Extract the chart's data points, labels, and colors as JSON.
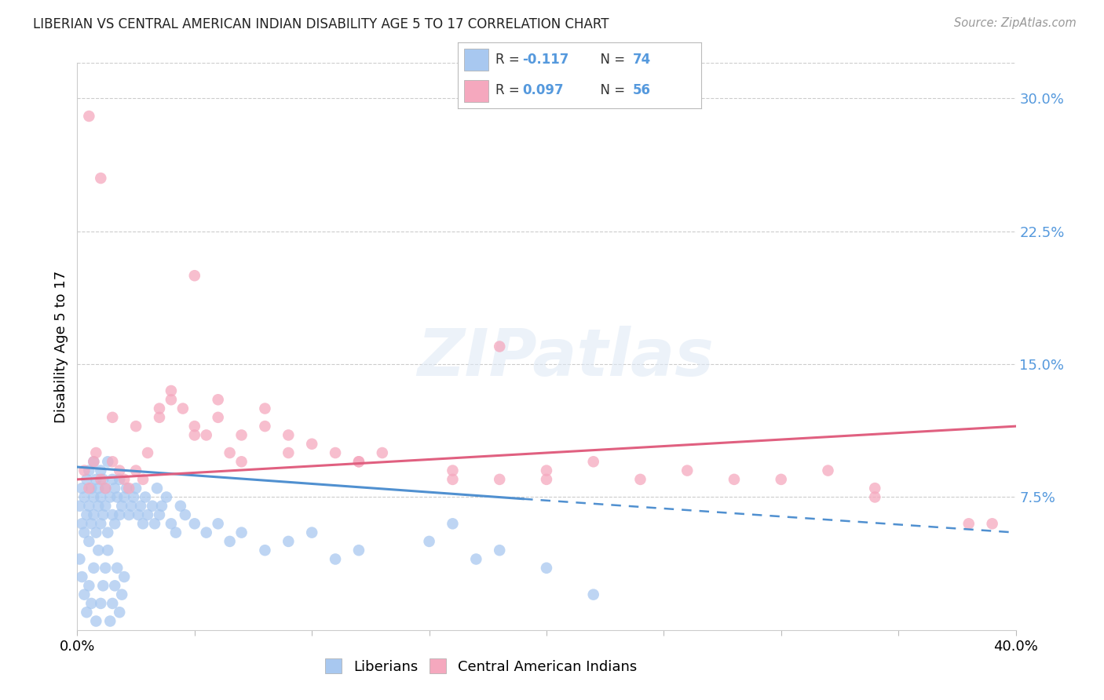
{
  "title": "LIBERIAN VS CENTRAL AMERICAN INDIAN DISABILITY AGE 5 TO 17 CORRELATION CHART",
  "source": "Source: ZipAtlas.com",
  "ylabel": "Disability Age 5 to 17",
  "xlim": [
    0.0,
    0.4
  ],
  "ylim": [
    0.0,
    0.32
  ],
  "xticks": [
    0.0,
    0.05,
    0.1,
    0.15,
    0.2,
    0.25,
    0.3,
    0.35,
    0.4
  ],
  "xticklabels": [
    "0.0%",
    "",
    "",
    "",
    "",
    "",
    "",
    "",
    "40.0%"
  ],
  "yticks_right": [
    0.0,
    0.075,
    0.15,
    0.225,
    0.3
  ],
  "yticklabels_right": [
    "",
    "7.5%",
    "15.0%",
    "22.5%",
    "30.0%"
  ],
  "color_liberian": "#a8c8f0",
  "color_cai": "#f5a8be",
  "color_line_liberian": "#5090d0",
  "color_line_cai": "#e06080",
  "color_right_axis": "#5599dd",
  "background_color": "#ffffff",
  "watermark_text": "ZIPatlas",
  "lib_line_start_x": 0.0,
  "lib_line_start_y": 0.092,
  "lib_line_solid_end_x": 0.19,
  "lib_line_solid_end_y": 0.074,
  "lib_line_dash_end_x": 0.4,
  "lib_line_dash_end_y": 0.055,
  "cai_line_start_x": 0.0,
  "cai_line_start_y": 0.085,
  "cai_line_end_x": 0.4,
  "cai_line_end_y": 0.115,
  "lib_x": [
    0.001,
    0.002,
    0.002,
    0.003,
    0.003,
    0.004,
    0.004,
    0.005,
    0.005,
    0.005,
    0.006,
    0.006,
    0.007,
    0.007,
    0.007,
    0.008,
    0.008,
    0.009,
    0.009,
    0.01,
    0.01,
    0.01,
    0.011,
    0.011,
    0.012,
    0.012,
    0.013,
    0.013,
    0.014,
    0.015,
    0.015,
    0.016,
    0.016,
    0.017,
    0.018,
    0.018,
    0.019,
    0.02,
    0.021,
    0.022,
    0.023,
    0.024,
    0.025,
    0.026,
    0.027,
    0.028,
    0.029,
    0.03,
    0.032,
    0.033,
    0.034,
    0.035,
    0.036,
    0.038,
    0.04,
    0.042,
    0.044,
    0.046,
    0.05,
    0.055,
    0.06,
    0.065,
    0.07,
    0.08,
    0.09,
    0.1,
    0.11,
    0.12,
    0.15,
    0.16,
    0.17,
    0.18,
    0.2,
    0.22
  ],
  "lib_y": [
    0.07,
    0.06,
    0.08,
    0.055,
    0.075,
    0.065,
    0.085,
    0.05,
    0.07,
    0.09,
    0.06,
    0.08,
    0.065,
    0.075,
    0.095,
    0.055,
    0.085,
    0.07,
    0.08,
    0.06,
    0.075,
    0.09,
    0.065,
    0.085,
    0.07,
    0.08,
    0.055,
    0.095,
    0.075,
    0.065,
    0.085,
    0.06,
    0.08,
    0.075,
    0.065,
    0.085,
    0.07,
    0.075,
    0.08,
    0.065,
    0.07,
    0.075,
    0.08,
    0.065,
    0.07,
    0.06,
    0.075,
    0.065,
    0.07,
    0.06,
    0.08,
    0.065,
    0.07,
    0.075,
    0.06,
    0.055,
    0.07,
    0.065,
    0.06,
    0.055,
    0.06,
    0.05,
    0.055,
    0.045,
    0.05,
    0.055,
    0.04,
    0.045,
    0.05,
    0.06,
    0.04,
    0.045,
    0.035,
    0.02
  ],
  "lib_y_extra_low": [
    0.04,
    0.03,
    0.02,
    0.01,
    0.025,
    0.015,
    0.035,
    0.005,
    0.045,
    0.015,
    0.025,
    0.035,
    0.045,
    0.005,
    0.015,
    0.025,
    0.035,
    0.01,
    0.02,
    0.03
  ],
  "lib_x_extra_low": [
    0.001,
    0.002,
    0.003,
    0.004,
    0.005,
    0.006,
    0.007,
    0.008,
    0.009,
    0.01,
    0.011,
    0.012,
    0.013,
    0.014,
    0.015,
    0.016,
    0.017,
    0.018,
    0.019,
    0.02
  ],
  "cai_x": [
    0.003,
    0.005,
    0.007,
    0.01,
    0.012,
    0.015,
    0.018,
    0.02,
    0.022,
    0.025,
    0.028,
    0.03,
    0.035,
    0.04,
    0.045,
    0.05,
    0.055,
    0.06,
    0.065,
    0.07,
    0.08,
    0.09,
    0.1,
    0.11,
    0.12,
    0.13,
    0.16,
    0.18,
    0.2,
    0.22,
    0.24,
    0.26,
    0.3,
    0.32,
    0.34,
    0.38,
    0.008,
    0.015,
    0.025,
    0.035,
    0.05,
    0.07,
    0.09,
    0.005,
    0.01,
    0.05,
    0.18,
    0.28,
    0.34,
    0.39,
    0.04,
    0.06,
    0.08,
    0.12,
    0.16,
    0.2
  ],
  "cai_y": [
    0.09,
    0.08,
    0.095,
    0.085,
    0.08,
    0.095,
    0.09,
    0.085,
    0.08,
    0.09,
    0.085,
    0.1,
    0.12,
    0.13,
    0.125,
    0.115,
    0.11,
    0.12,
    0.1,
    0.11,
    0.115,
    0.11,
    0.105,
    0.1,
    0.095,
    0.1,
    0.09,
    0.085,
    0.09,
    0.095,
    0.085,
    0.09,
    0.085,
    0.09,
    0.08,
    0.06,
    0.1,
    0.12,
    0.115,
    0.125,
    0.11,
    0.095,
    0.1,
    0.29,
    0.255,
    0.2,
    0.16,
    0.085,
    0.075,
    0.06,
    0.135,
    0.13,
    0.125,
    0.095,
    0.085,
    0.085
  ]
}
